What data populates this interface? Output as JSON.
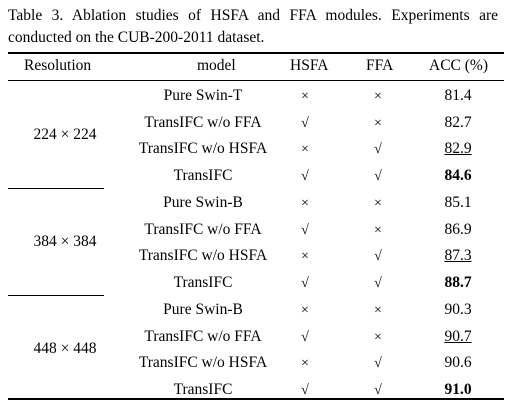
{
  "caption": "Table 3. Ablation studies of HSFA and FFA modules. Experiments are conducted on the CUB-200-2011 dataset.",
  "headers": {
    "resolution": "Resolution",
    "model": "model",
    "hsfa": "HSFA",
    "ffa": "FFA",
    "acc": "ACC (%)"
  },
  "groups": [
    {
      "resolution": "224 × 224",
      "rows": [
        {
          "model": "Pure Swin-T",
          "hsfa": "×",
          "ffa": "×",
          "acc": "81.4",
          "style": "normal"
        },
        {
          "model": "TransIFC w/o FFA",
          "hsfa": "√",
          "ffa": "×",
          "acc": "82.7",
          "style": "normal"
        },
        {
          "model": "TransIFC w/o HSFA",
          "hsfa": "×",
          "ffa": "√",
          "acc": "82.9",
          "style": "underline"
        },
        {
          "model": "TransIFC",
          "hsfa": "√",
          "ffa": "√",
          "acc": "84.6",
          "style": "bold"
        }
      ]
    },
    {
      "resolution": "384 × 384",
      "rows": [
        {
          "model": "Pure Swin-B",
          "hsfa": "×",
          "ffa": "×",
          "acc": "85.1",
          "style": "normal"
        },
        {
          "model": "TransIFC w/o FFA",
          "hsfa": "√",
          "ffa": "×",
          "acc": "86.9",
          "style": "normal"
        },
        {
          "model": "TransIFC w/o HSFA",
          "hsfa": "×",
          "ffa": "√",
          "acc": "87.3",
          "style": "underline"
        },
        {
          "model": "TransIFC",
          "hsfa": "√",
          "ffa": "√",
          "acc": "88.7",
          "style": "bold"
        }
      ]
    },
    {
      "resolution": "448 × 448",
      "rows": [
        {
          "model": "Pure Swin-B",
          "hsfa": "×",
          "ffa": "×",
          "acc": "90.3",
          "style": "normal"
        },
        {
          "model": "TransIFC w/o FFA",
          "hsfa": "√",
          "ffa": "×",
          "acc": "90.7",
          "style": "underline"
        },
        {
          "model": "TransIFC w/o HSFA",
          "hsfa": "×",
          "ffa": "√",
          "acc": "90.6",
          "style": "normal"
        },
        {
          "model": "TransIFC",
          "hsfa": "√",
          "ffa": "√",
          "acc": "91.0",
          "style": "bold"
        }
      ]
    }
  ]
}
